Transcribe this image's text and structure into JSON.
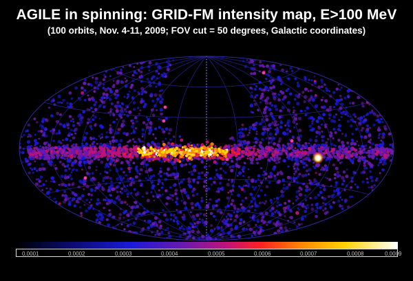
{
  "title": "AGILE in spinning: GRID-FM intensity map, E>100 MeV",
  "subtitle": "(100 orbits, Nov. 4-11, 2009; FOV cut = 50 degrees, Galactic coordinates)",
  "projection": "aitoff",
  "colormap": [
    "#000000",
    "#0a0a6e",
    "#1a1ad8",
    "#6a1ab0",
    "#c0127a",
    "#ff2020",
    "#ff8a00",
    "#ffd300",
    "#ffffff"
  ],
  "colorbar": {
    "ticks": [
      "0.0001",
      "0.0002",
      "0.0003",
      "0.0004",
      "0.0005",
      "0.0006",
      "0.0007",
      "0.0008",
      "0.0009"
    ]
  }
}
